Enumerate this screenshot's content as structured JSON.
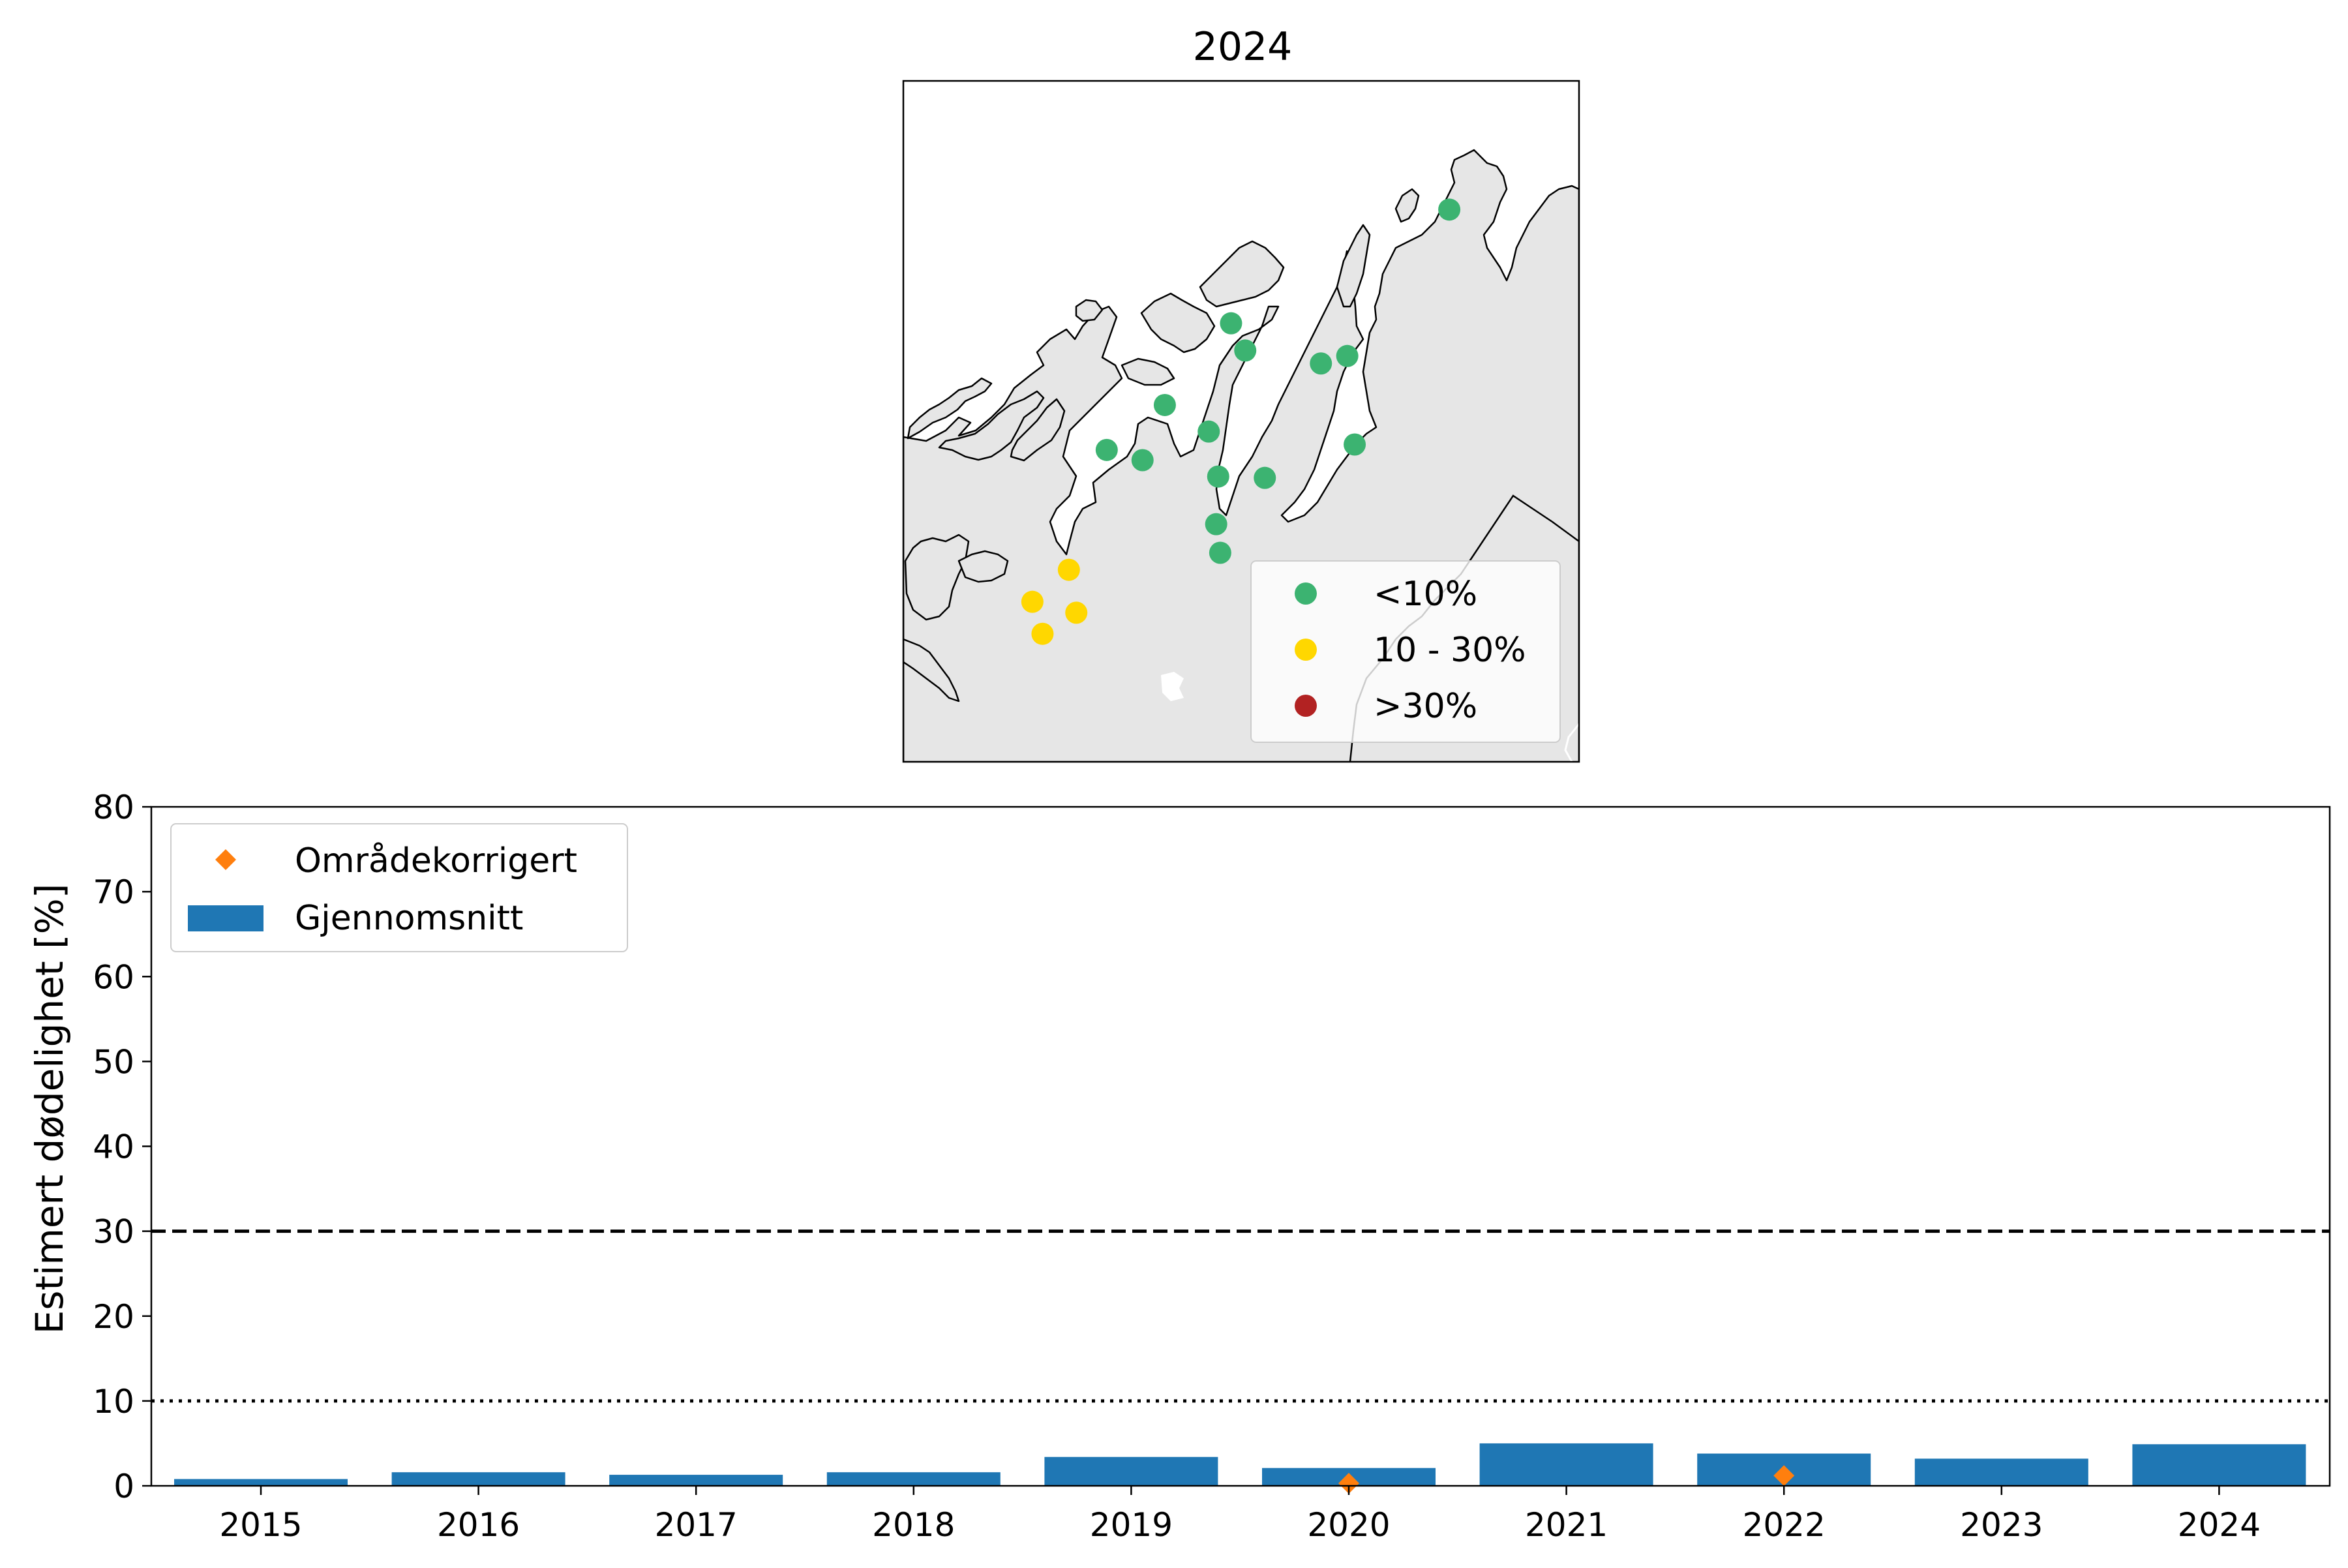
{
  "map_panel": {
    "title": "2024",
    "legend": [
      {
        "label": "<10%",
        "color": "#3cb371"
      },
      {
        "label": "10 - 30%",
        "color": "#ffd700"
      },
      {
        "label": ">30%",
        "color": "#b22222"
      }
    ],
    "land_color": "#e6e6e6",
    "sites": [
      {
        "lon": 0.808,
        "lat": 0.811,
        "category": "<10%"
      },
      {
        "lon": 0.485,
        "lat": 0.644,
        "category": "<10%"
      },
      {
        "lon": 0.506,
        "lat": 0.604,
        "category": "<10%"
      },
      {
        "lon": 0.618,
        "lat": 0.585,
        "category": "<10%"
      },
      {
        "lon": 0.657,
        "lat": 0.596,
        "category": "<10%"
      },
      {
        "lon": 0.387,
        "lat": 0.524,
        "category": "<10%"
      },
      {
        "lon": 0.452,
        "lat": 0.485,
        "category": "<10%"
      },
      {
        "lon": 0.301,
        "lat": 0.458,
        "category": "<10%"
      },
      {
        "lon": 0.354,
        "lat": 0.443,
        "category": "<10%"
      },
      {
        "lon": 0.668,
        "lat": 0.466,
        "category": "<10%"
      },
      {
        "lon": 0.466,
        "lat": 0.419,
        "category": "<10%"
      },
      {
        "lon": 0.535,
        "lat": 0.417,
        "category": "<10%"
      },
      {
        "lon": 0.463,
        "lat": 0.349,
        "category": "<10%"
      },
      {
        "lon": 0.469,
        "lat": 0.307,
        "category": "<10%"
      },
      {
        "lon": 0.245,
        "lat": 0.282,
        "category": "10 - 30%"
      },
      {
        "lon": 0.191,
        "lat": 0.235,
        "category": "10 - 30%"
      },
      {
        "lon": 0.256,
        "lat": 0.219,
        "category": "10 - 30%"
      },
      {
        "lon": 0.206,
        "lat": 0.188,
        "category": "10 - 30%"
      }
    ]
  },
  "chart_data": {
    "type": "bar",
    "categories": [
      "2015",
      "2016",
      "2017",
      "2018",
      "2019",
      "2020",
      "2021",
      "2022",
      "2023",
      "2024"
    ],
    "series": [
      {
        "name": "Gjennomsnitt",
        "values": [
          0.8,
          1.6,
          1.3,
          1.6,
          3.4,
          2.1,
          5.0,
          3.8,
          3.2,
          4.9
        ],
        "color": "#1f77b4"
      },
      {
        "name": "Områdekorrigert",
        "kind": "marker",
        "values": [
          null,
          null,
          null,
          null,
          null,
          0.3,
          null,
          1.2,
          null,
          null
        ],
        "color": "#ff7f0e"
      }
    ],
    "ylabel": "Estimert dødelighet [%]",
    "xlabel": "",
    "ylim": [
      0,
      80
    ],
    "yticks": [
      "0",
      "10",
      "20",
      "30",
      "40",
      "50",
      "60",
      "70",
      "80"
    ],
    "reference_lines": [
      {
        "y": 30,
        "style": "dashed"
      },
      {
        "y": 10,
        "style": "dotted"
      }
    ],
    "grid": false,
    "legend_placement": "top-left"
  }
}
